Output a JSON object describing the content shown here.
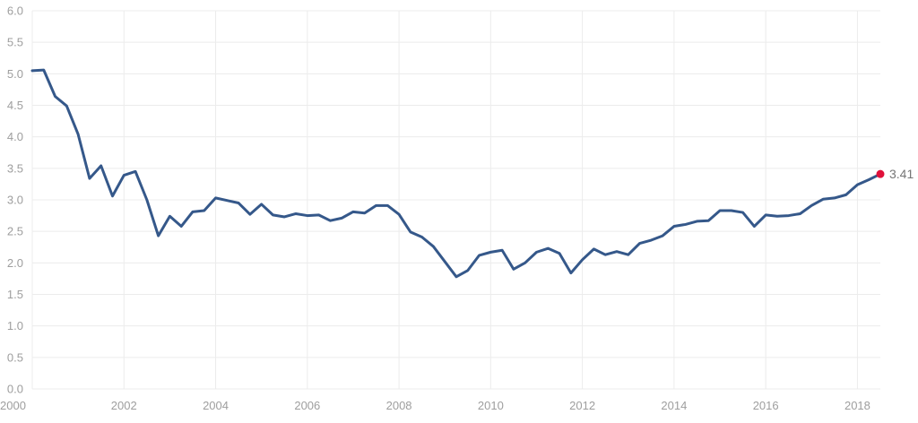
{
  "chart_data": {
    "type": "line",
    "title": "",
    "xlabel": "",
    "ylabel": "",
    "xlim": [
      2000,
      2018.5
    ],
    "ylim": [
      0,
      6.0
    ],
    "x_ticks": [
      "2000",
      "2002",
      "2004",
      "2006",
      "2008",
      "2010",
      "2012",
      "2014",
      "2016",
      "2018"
    ],
    "y_ticks": [
      "0.0",
      "0.5",
      "1.0",
      "1.5",
      "2.0",
      "2.5",
      "3.0",
      "3.5",
      "4.0",
      "4.5",
      "5.0",
      "5.5",
      "6.0"
    ],
    "grid": true,
    "legend": "none",
    "colors": {
      "line": "#35588a",
      "last_point": "#e0103a",
      "grid": "#ececec",
      "tick_text": "#9e9e9e",
      "label_text": "#757575"
    },
    "series": [
      {
        "x": [
          2000.0,
          2000.25,
          2000.5,
          2000.75,
          2001.0,
          2001.25,
          2001.5,
          2001.75,
          2002.0,
          2002.25,
          2002.5,
          2002.75,
          2003.0,
          2003.25,
          2003.5,
          2003.75,
          2004.0,
          2004.25,
          2004.5,
          2004.75,
          2005.0,
          2005.25,
          2005.5,
          2005.75,
          2006.0,
          2006.25,
          2006.5,
          2006.75,
          2007.0,
          2007.25,
          2007.5,
          2007.75,
          2008.0,
          2008.25,
          2008.5,
          2008.75,
          2009.0,
          2009.25,
          2009.5,
          2009.75,
          2010.0,
          2010.25,
          2010.5,
          2010.75,
          2011.0,
          2011.25,
          2011.5,
          2011.75,
          2012.0,
          2012.25,
          2012.5,
          2012.75,
          2013.0,
          2013.25,
          2013.5,
          2013.75,
          2014.0,
          2014.25,
          2014.5,
          2014.75,
          2015.0,
          2015.25,
          2015.5,
          2015.75,
          2016.0,
          2016.25,
          2016.5,
          2016.75,
          2017.0,
          2017.25,
          2017.5,
          2017.75,
          2018.0,
          2018.25,
          2018.5
        ],
        "values": [
          5.05,
          5.06,
          4.64,
          4.49,
          4.04,
          3.34,
          3.54,
          3.06,
          3.39,
          3.45,
          3.0,
          2.43,
          2.74,
          2.58,
          2.81,
          2.83,
          3.03,
          2.99,
          2.95,
          2.77,
          2.93,
          2.76,
          2.73,
          2.78,
          2.75,
          2.76,
          2.67,
          2.71,
          2.81,
          2.79,
          2.91,
          2.91,
          2.77,
          2.49,
          2.41,
          2.26,
          2.02,
          1.78,
          1.88,
          2.12,
          2.17,
          2.2,
          1.9,
          2.0,
          2.17,
          2.23,
          2.15,
          1.84,
          2.05,
          2.22,
          2.13,
          2.18,
          2.13,
          2.31,
          2.36,
          2.43,
          2.58,
          2.61,
          2.66,
          2.67,
          2.83,
          2.83,
          2.8,
          2.58,
          2.76,
          2.74,
          2.75,
          2.78,
          2.91,
          3.01,
          3.03,
          3.08,
          3.24,
          3.32,
          3.41
        ]
      }
    ],
    "last_value_label": "3.41"
  }
}
